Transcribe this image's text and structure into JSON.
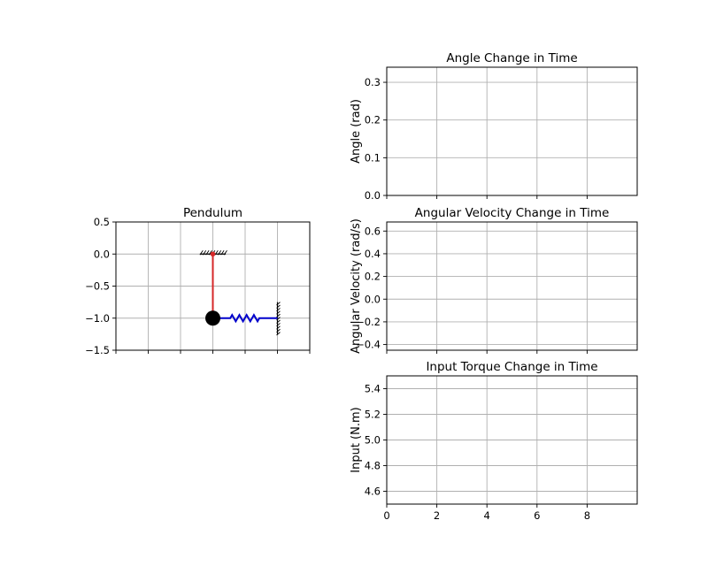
{
  "chart_data": [
    {
      "id": "pendulum",
      "type": "scatter",
      "title": "Pendulum",
      "xlim": [
        -1.5,
        1.5
      ],
      "ylim": [
        -1.5,
        0.5
      ],
      "xticks": [
        -1.5,
        -1.0,
        -0.5,
        0.0,
        0.5,
        1.0,
        1.5
      ],
      "yticks": [
        -1.5,
        -1.0,
        -0.5,
        0.0,
        0.5
      ],
      "ytick_labels": [
        "−1.5",
        "−1.0",
        "−0.5",
        "0.0",
        "0.5"
      ],
      "grid": true,
      "elements": {
        "pivot": {
          "x": 0.0,
          "y": 0.0,
          "color": "#d62728"
        },
        "rod": {
          "x": [
            0.0,
            0.0
          ],
          "y": [
            0.0,
            -1.0
          ],
          "color": "#d62728"
        },
        "bob": {
          "x": 0.0,
          "y": -1.0,
          "color": "#000000"
        },
        "spring": {
          "x": [
            0.0,
            1.0
          ],
          "y": [
            -1.0,
            -1.0
          ],
          "color": "#0000cc"
        },
        "ceiling": {
          "x": [
            -0.2,
            0.2
          ],
          "y": 0.0
        },
        "wall": {
          "x": 1.0,
          "y": [
            -1.25,
            -0.75
          ]
        }
      }
    },
    {
      "id": "angle",
      "type": "line",
      "title": "Angle Change in Time",
      "xlabel": "",
      "ylabel": "Angle (rad)",
      "xlim": [
        0,
        10
      ],
      "ylim": [
        0.0,
        0.34
      ],
      "xticks": [
        0,
        2,
        4,
        6,
        8
      ],
      "yticks": [
        0.0,
        0.1,
        0.2,
        0.3
      ],
      "ytick_labels": [
        "0.0",
        "0.1",
        "0.2",
        "0.3"
      ],
      "show_xtick_labels": false,
      "grid": true,
      "series": []
    },
    {
      "id": "angular_velocity",
      "type": "line",
      "title": "Angular Velocity Change in Time",
      "xlabel": "",
      "ylabel": "Angular Velocity (rad/s)",
      "xlim": [
        0,
        10
      ],
      "ylim": [
        -0.45,
        0.68
      ],
      "xticks": [
        0,
        2,
        4,
        6,
        8
      ],
      "yticks": [
        -0.4,
        -0.2,
        0.0,
        0.2,
        0.4,
        0.6
      ],
      "ytick_labels": [
        "−0.4",
        "−0.2",
        "0.0",
        "0.2",
        "0.4",
        "0.6"
      ],
      "show_xtick_labels": false,
      "grid": true,
      "series": []
    },
    {
      "id": "input_torque",
      "type": "line",
      "title": "Input Torque Change in Time",
      "xlabel": "",
      "ylabel": "Input (N.m)",
      "xlim": [
        0,
        10
      ],
      "ylim": [
        4.5,
        5.5
      ],
      "xticks": [
        0,
        2,
        4,
        6,
        8
      ],
      "yticks": [
        4.6,
        4.8,
        5.0,
        5.2,
        5.4
      ],
      "ytick_labels": [
        "4.6",
        "4.8",
        "5.0",
        "5.2",
        "5.4"
      ],
      "xtick_labels": [
        "0",
        "2",
        "4",
        "6",
        "8"
      ],
      "show_xtick_labels": true,
      "grid": true,
      "series": []
    }
  ]
}
